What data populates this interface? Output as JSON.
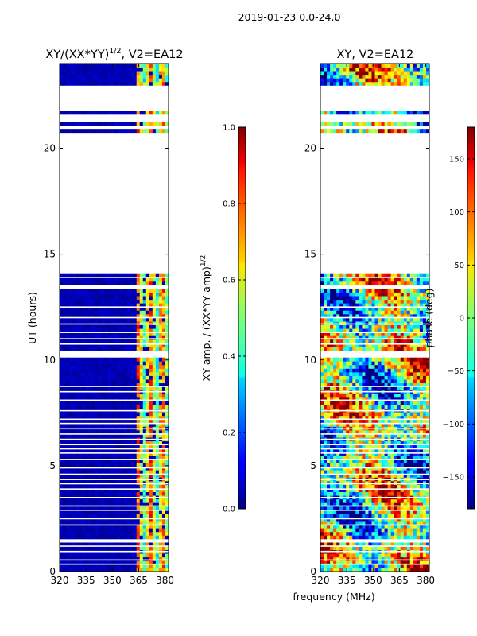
{
  "figure": {
    "suptitle": "2019-01-23 0.0-24.0",
    "xlabel": "frequency (MHz)"
  },
  "chart_data": [
    {
      "type": "heatmap",
      "title_main": "XY/(XX*YY)",
      "title_sup": "1/2",
      "title_tail": ", V2=EA12",
      "ylabel": "UT (hours)",
      "xlim": [
        320,
        382
      ],
      "ylim": [
        0,
        24
      ],
      "xticks": [
        "320",
        "335",
        "350",
        "365",
        "380"
      ],
      "xtick_values": [
        320,
        335,
        350,
        365,
        380
      ],
      "yticks": [
        "0",
        "5",
        "10",
        "15",
        "20"
      ],
      "ytick_values": [
        0,
        5,
        10,
        15,
        20
      ],
      "colormap": "jet",
      "colorbar": {
        "label_main": "XY amp. / (XX*YY amp)",
        "label_sup": "1/2",
        "range": [
          0.0,
          1.0
        ],
        "ticks": [
          "0.0",
          "0.2",
          "0.4",
          "0.6",
          "0.8",
          "1.0"
        ],
        "tick_values": [
          0.0,
          0.2,
          0.4,
          0.6,
          0.8,
          1.0
        ]
      },
      "data_gaps_hours": [
        [
          1.3,
          1.6
        ],
        [
          10.1,
          10.5
        ],
        [
          13.3,
          13.6
        ],
        [
          14.1,
          20.7
        ],
        [
          21.0,
          21.1
        ],
        [
          21.3,
          21.6
        ],
        [
          21.8,
          22.9
        ]
      ],
      "active_band_mhz": [
        363,
        382
      ]
    },
    {
      "type": "heatmap",
      "title_main": "XY, V2=EA12",
      "xlim": [
        320,
        382
      ],
      "ylim": [
        0,
        24
      ],
      "xticks": [
        "320",
        "335",
        "350",
        "365",
        "380"
      ],
      "xtick_values": [
        320,
        335,
        350,
        365,
        380
      ],
      "yticks": [
        "0",
        "5",
        "10",
        "15",
        "20"
      ],
      "ytick_values": [
        0,
        5,
        10,
        15,
        20
      ],
      "colormap": "jet",
      "colorbar": {
        "label": "phase (deg)",
        "range": [
          -180,
          180
        ],
        "ticks": [
          "−150",
          "−100",
          "−50",
          "0",
          "50",
          "100",
          "150"
        ],
        "tick_values": [
          -150,
          -100,
          -50,
          0,
          50,
          100,
          150
        ]
      },
      "data_gaps_hours": [
        [
          1.3,
          1.6
        ],
        [
          10.1,
          10.5
        ],
        [
          13.3,
          13.6
        ],
        [
          14.1,
          20.7
        ],
        [
          21.0,
          21.1
        ],
        [
          21.3,
          21.6
        ],
        [
          21.8,
          22.9
        ]
      ]
    }
  ]
}
